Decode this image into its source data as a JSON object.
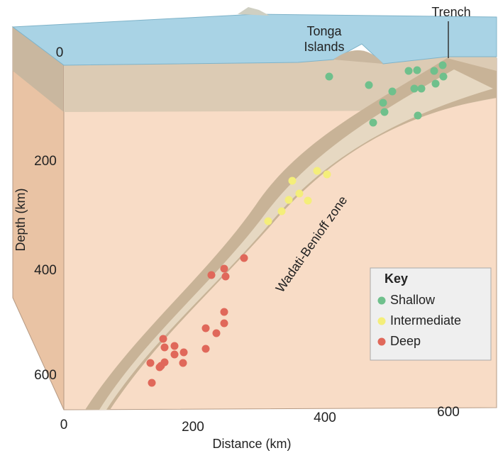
{
  "labels": {
    "trench": "Trench",
    "islands": [
      "Tonga",
      "Islands"
    ],
    "zone": "Wadati-Benioff zone"
  },
  "depth_axis": {
    "title": "Depth (km)",
    "ticks": [
      "0",
      "200",
      "400",
      "600"
    ]
  },
  "distance_axis": {
    "title": "Distance (km)",
    "ticks": [
      "0",
      "200",
      "400",
      "600"
    ]
  },
  "key": {
    "title": "Key",
    "items": [
      {
        "label": "Shallow",
        "color": "#6fc08c"
      },
      {
        "label": "Intermediate",
        "color": "#f4ee7a"
      },
      {
        "label": "Deep",
        "color": "#e0685a"
      }
    ]
  }
}
